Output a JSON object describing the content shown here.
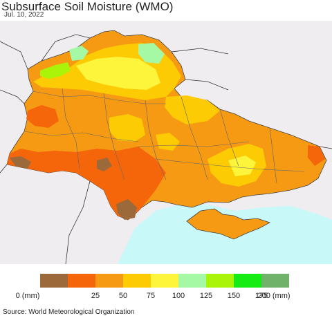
{
  "header": {
    "title": "Subsurface Soil Moisture (WMO)",
    "date": "Jul. 10, 2022"
  },
  "legend": {
    "colors": [
      "#9c6a3a",
      "#f5660a",
      "#f59a12",
      "#fccb04",
      "#fcf53c",
      "#a6f9a4",
      "#aaf40a",
      "#14ec14",
      "#70b26a"
    ],
    "ticks": [
      "0 (mm)",
      "25",
      "50",
      "75",
      "100",
      "125",
      "150",
      "175",
      "200 (mm)"
    ]
  },
  "map": {
    "land_color": "#efedf0",
    "sea_color": "#c8f8f8",
    "border_color": "#444444"
  },
  "footer": {
    "source": "Source: World Meteorological Organization"
  }
}
